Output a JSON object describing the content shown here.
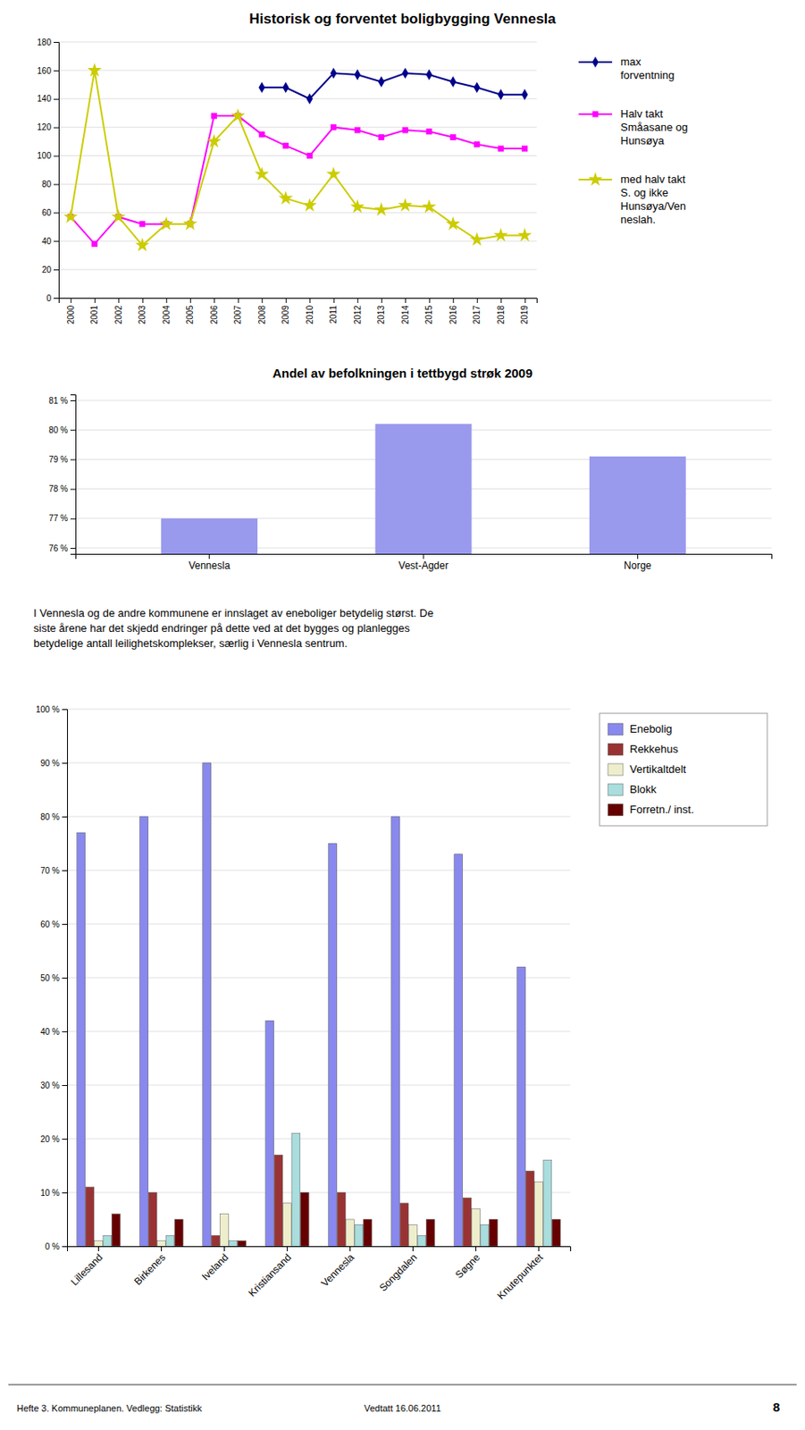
{
  "chart_data": [
    {
      "type": "line",
      "title": "Historisk og forventet boligbygging Vennesla",
      "x": [
        2000,
        2001,
        2002,
        2003,
        2004,
        2005,
        2006,
        2007,
        2008,
        2009,
        2010,
        2011,
        2012,
        2013,
        2014,
        2015,
        2016,
        2017,
        2018,
        2019
      ],
      "xlim": [
        1999.5,
        2019.5
      ],
      "xticks": [
        2000,
        2001,
        2002,
        2003,
        2004,
        2005,
        2006,
        2007,
        2008,
        2009,
        2010,
        2011,
        2012,
        2013,
        2014,
        2015,
        2016,
        2017,
        2018,
        2019
      ],
      "ylim": [
        0,
        180
      ],
      "yticks": [
        0,
        20,
        40,
        60,
        80,
        100,
        120,
        140,
        160,
        180
      ],
      "grid": true,
      "legend": "right",
      "series": [
        {
          "name": "max\nforventning",
          "color": "#00008B",
          "marker": "diamond",
          "values": [
            null,
            null,
            null,
            null,
            null,
            null,
            null,
            null,
            148,
            148,
            140,
            158,
            157,
            152,
            158,
            157,
            152,
            148,
            143,
            143
          ]
        },
        {
          "name": "Halv takt\nSmåasane og\nHunsøya",
          "color": "#ff00ff",
          "marker": "square",
          "values": [
            57,
            38,
            57,
            52,
            52,
            52,
            128,
            128,
            115,
            107,
            100,
            120,
            118,
            113,
            118,
            117,
            113,
            108,
            105,
            105
          ]
        },
        {
          "name": "med halv takt\nS. og ikke\nHunsøya/Ven\nneslah.",
          "color": "#cccc00",
          "marker": "star",
          "values": [
            57,
            160,
            57,
            37,
            52,
            52,
            110,
            128,
            87,
            70,
            65,
            87,
            64,
            62,
            65,
            64,
            52,
            41,
            44,
            44
          ]
        }
      ]
    },
    {
      "type": "bar",
      "title": "Andel av befolkningen i tettbygd strøk 2009",
      "categories": [
        "Vennesla",
        "Vest-Agder",
        "Norge"
      ],
      "values": [
        0.77,
        0.802,
        0.791
      ],
      "color": "#9999ee",
      "ylim": [
        0.758,
        0.812
      ],
      "yticks": [
        {
          "value": 0.76,
          "label": "76 %"
        },
        {
          "value": 0.77,
          "label": "77 %"
        },
        {
          "value": 0.78,
          "label": "78 %"
        },
        {
          "value": 0.79,
          "label": "79 %"
        },
        {
          "value": 0.8,
          "label": "80 %"
        },
        {
          "value": 0.81,
          "label": "81 %"
        }
      ],
      "grid": true,
      "annotations": [
        "I Vennesla og de andre kommunene er innslaget av eneboliger betydelig størst. De\nsiste årene har det skjedd endringer på dette ved at det bygges og planlegges\nbetydelige antall leilighetskomplekser, særlig i Vennesla sentrum."
      ]
    },
    {
      "type": "bar",
      "categories": [
        "Lillesand",
        "Birkenes",
        "Iveland",
        "Kristiansand",
        "Vennesla",
        "Songdalen",
        "Søgne",
        "Knutepunktet"
      ],
      "series": [
        {
          "name": "Enebolig",
          "color": "#8888ee",
          "values": [
            0.77,
            0.8,
            0.9,
            0.42,
            0.75,
            0.8,
            0.73,
            0.52
          ]
        },
        {
          "name": "Rekkehus",
          "color": "#993333",
          "values": [
            0.11,
            0.1,
            0.02,
            0.17,
            0.1,
            0.08,
            0.09,
            0.14
          ]
        },
        {
          "name": "Vertikaltdelt",
          "color": "#eeeecc",
          "values": [
            0.01,
            0.01,
            0.06,
            0.08,
            0.05,
            0.04,
            0.07,
            0.12
          ]
        },
        {
          "name": "Blokk",
          "color": "#aadddd",
          "values": [
            0.02,
            0.02,
            0.01,
            0.21,
            0.04,
            0.02,
            0.04,
            0.16
          ]
        },
        {
          "name": "Forretn./ inst.",
          "color": "#660000",
          "values": [
            0.06,
            0.05,
            0.01,
            0.1,
            0.05,
            0.05,
            0.05,
            0.05
          ]
        }
      ],
      "ylim": [
        0,
        1.0
      ],
      "yticks": [
        {
          "value": 0,
          "label": "0 %"
        },
        {
          "value": 0.1,
          "label": "10 %"
        },
        {
          "value": 0.2,
          "label": "20 %"
        },
        {
          "value": 0.3,
          "label": "30 %"
        },
        {
          "value": 0.4,
          "label": "40 %"
        },
        {
          "value": 0.5,
          "label": "50 %"
        },
        {
          "value": 0.6,
          "label": "60 %"
        },
        {
          "value": 0.7,
          "label": "70 %"
        },
        {
          "value": 0.8,
          "label": "80 %"
        },
        {
          "value": 0.9,
          "label": "90 %"
        },
        {
          "value": 1.0,
          "label": "100 %"
        }
      ],
      "grid": true,
      "legend": "right",
      "annotations": [
        "Hefte 3. Kommuneplanen. Vedlegg: Statistikk",
        "Vedtatt 16.06.2011",
        "8"
      ]
    }
  ]
}
